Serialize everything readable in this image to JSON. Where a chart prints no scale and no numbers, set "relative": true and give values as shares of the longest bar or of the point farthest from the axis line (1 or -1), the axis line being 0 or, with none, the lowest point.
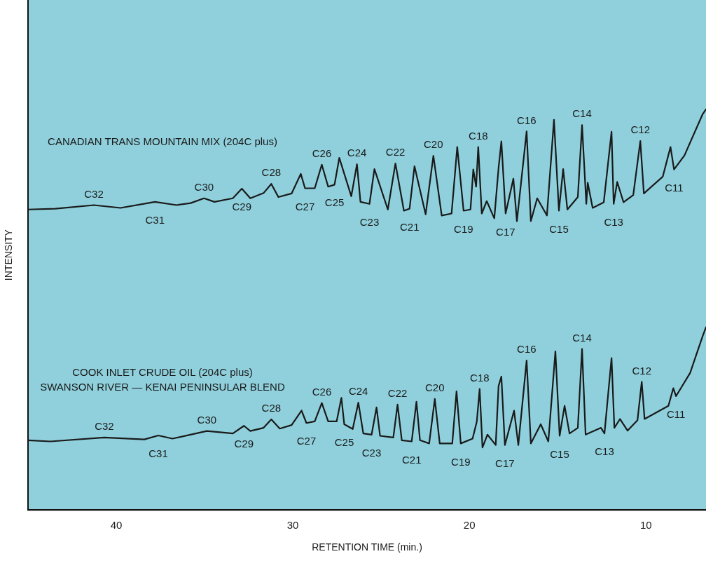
{
  "chart_data": {
    "type": "line",
    "xlabel": "RETENTION TIME (min.)",
    "ylabel": "INTENSITY",
    "relative": true,
    "marker": "none",
    "xlim": [
      45,
      6.6
    ],
    "xticks": [
      40,
      30,
      20,
      10
    ],
    "series": [
      {
        "color": "#1a1a1a",
        "x": [
          45,
          43.46,
          41.27,
          39.76,
          37.81,
          36.58,
          35.79,
          35.03,
          34.44,
          33.4,
          32.89,
          32.41,
          31.66,
          31.22,
          30.82,
          30.07,
          29.55,
          29.31,
          28.76,
          28.36,
          28,
          27.64,
          27.37,
          26.69,
          26.37,
          26.17,
          25.66,
          25.38,
          24.62,
          24.19,
          23.71,
          23.39,
          23.11,
          22.48,
          22.04,
          21.57,
          21.01,
          20.69,
          20.33,
          19.94,
          19.78,
          19.62,
          19.5,
          19.3,
          19.02,
          18.59,
          18.35,
          18.19,
          17.95,
          17.51,
          17.31,
          16.76,
          16.52,
          16.16,
          15.61,
          15.21,
          14.93,
          14.69,
          14.45,
          13.86,
          13.62,
          13.38,
          13.3,
          13.02,
          12.39,
          11.95,
          11.83,
          11.63,
          11.27,
          10.72,
          10.32,
          10.12,
          9.05,
          8.61,
          8.41,
          7.82,
          6.79,
          6.6
        ],
        "values": [
          0.75,
          0.752,
          0.761,
          0.754,
          0.769,
          0.761,
          0.766,
          0.778,
          0.769,
          0.778,
          0.802,
          0.778,
          0.791,
          0.814,
          0.781,
          0.79,
          0.839,
          0.803,
          0.803,
          0.862,
          0.807,
          0.812,
          0.879,
          0.783,
          0.863,
          0.769,
          0.764,
          0.851,
          0.75,
          0.865,
          0.747,
          0.752,
          0.858,
          0.738,
          0.884,
          0.735,
          0.74,
          0.906,
          0.747,
          0.75,
          0.85,
          0.807,
          0.906,
          0.74,
          0.771,
          0.728,
          0.853,
          0.92,
          0.74,
          0.827,
          0.721,
          0.945,
          0.721,
          0.778,
          0.735,
          0.974,
          0.747,
          0.851,
          0.75,
          0.781,
          0.961,
          0.764,
          0.817,
          0.754,
          0.768,
          0.944,
          0.764,
          0.819,
          0.768,
          0.786,
          0.921,
          0.79,
          0.832,
          0.906,
          0.85,
          0.885,
          0.988,
          1
        ]
      },
      {
        "color": "#1a1a1a",
        "x": [
          45,
          43.73,
          40.68,
          38.41,
          37.62,
          36.82,
          34.87,
          33.4,
          32.77,
          32.41,
          31.66,
          31.22,
          30.74,
          30.07,
          29.51,
          29.23,
          28.76,
          28.36,
          28,
          27.52,
          27.25,
          27.09,
          26.61,
          26.29,
          26.01,
          25.54,
          25.26,
          25.06,
          24.31,
          24.07,
          23.83,
          23.27,
          23,
          22.8,
          22.28,
          21.96,
          21.68,
          20.97,
          20.73,
          20.49,
          19.82,
          19.58,
          19.42,
          19.26,
          18.98,
          18.51,
          18.35,
          18.19,
          17.99,
          17.47,
          17.23,
          16.76,
          16.52,
          15.96,
          15.53,
          15.13,
          14.89,
          14.61,
          14.33,
          13.86,
          13.62,
          13.42,
          12.55,
          12.35,
          11.95,
          11.79,
          11.47,
          11.04,
          10.48,
          10.24,
          10.08,
          8.73,
          8.45,
          8.3,
          7.5,
          6.79,
          6.6
        ],
        "values": [
          0.174,
          0.171,
          0.181,
          0.176,
          0.186,
          0.178,
          0.197,
          0.191,
          0.21,
          0.197,
          0.205,
          0.226,
          0.203,
          0.212,
          0.248,
          0.217,
          0.221,
          0.267,
          0.221,
          0.221,
          0.28,
          0.214,
          0.202,
          0.268,
          0.191,
          0.188,
          0.256,
          0.185,
          0.181,
          0.263,
          0.174,
          0.171,
          0.27,
          0.174,
          0.166,
          0.277,
          0.166,
          0.166,
          0.296,
          0.166,
          0.178,
          0.221,
          0.302,
          0.156,
          0.188,
          0.162,
          0.309,
          0.333,
          0.162,
          0.248,
          0.162,
          0.373,
          0.166,
          0.214,
          0.171,
          0.396,
          0.185,
          0.26,
          0.191,
          0.205,
          0.402,
          0.188,
          0.205,
          0.191,
          0.379,
          0.205,
          0.227,
          0.198,
          0.224,
          0.32,
          0.227,
          0.26,
          0.304,
          0.284,
          0.342,
          0.434,
          0.456
        ]
      }
    ],
    "annotations": [
      "CANADIAN TRANS MOUNTAIN MIX (204C plus)",
      "COOK INLET CRUDE OIL (204C plus)",
      "SWANSON RIVER — KENAI PENINSULAR BLEND",
      {
        "text": "C32",
        "x": 41.27,
        "y": 0.761
      },
      {
        "text": "C31",
        "x": 37.81,
        "y": 0.769
      },
      {
        "text": "C30",
        "x": 35.03,
        "y": 0.778
      },
      {
        "text": "C29",
        "x": 32.89,
        "y": 0.802
      },
      {
        "text": "C28",
        "x": 31.22,
        "y": 0.814
      },
      {
        "text": "C27",
        "x": 29.31,
        "y": 0.803
      },
      {
        "text": "C26",
        "x": 28.36,
        "y": 0.862
      },
      {
        "text": "C25",
        "x": 27.64,
        "y": 0.812
      },
      {
        "text": "C24",
        "x": 26.37,
        "y": 0.863
      },
      {
        "text": "C23",
        "x": 25.66,
        "y": 0.764
      },
      {
        "text": "C22",
        "x": 24.19,
        "y": 0.865
      },
      {
        "text": "C21",
        "x": 23.39,
        "y": 0.752
      },
      {
        "text": "C20",
        "x": 22.04,
        "y": 0.884
      },
      {
        "text": "C19",
        "x": 20.33,
        "y": 0.747
      },
      {
        "text": "C18",
        "x": 19.5,
        "y": 0.906
      },
      {
        "text": "C17",
        "x": 17.95,
        "y": 0.74
      },
      {
        "text": "C16",
        "x": 16.76,
        "y": 0.945
      },
      {
        "text": "C15",
        "x": 14.93,
        "y": 0.747
      },
      {
        "text": "C14",
        "x": 13.62,
        "y": 0.961
      },
      {
        "text": "C13",
        "x": 11.83,
        "y": 0.764
      },
      {
        "text": "C12",
        "x": 10.32,
        "y": 0.921
      },
      {
        "text": "C11",
        "x": 8.41,
        "y": 0.85
      },
      {
        "text": "C32",
        "x": 40.68,
        "y": 0.181
      },
      {
        "text": "C31",
        "x": 37.62,
        "y": 0.186
      },
      {
        "text": "C30",
        "x": 34.87,
        "y": 0.197
      },
      {
        "text": "C29",
        "x": 32.77,
        "y": 0.21
      },
      {
        "text": "C28",
        "x": 31.22,
        "y": 0.226
      },
      {
        "text": "C27",
        "x": 29.23,
        "y": 0.217
      },
      {
        "text": "C26",
        "x": 28.36,
        "y": 0.267
      },
      {
        "text": "C25",
        "x": 27.09,
        "y": 0.214
      },
      {
        "text": "C24",
        "x": 26.29,
        "y": 0.268
      },
      {
        "text": "C23",
        "x": 25.54,
        "y": 0.188
      },
      {
        "text": "C22",
        "x": 24.07,
        "y": 0.263
      },
      {
        "text": "C21",
        "x": 23.27,
        "y": 0.171
      },
      {
        "text": "C20",
        "x": 21.96,
        "y": 0.277
      },
      {
        "text": "C19",
        "x": 20.49,
        "y": 0.166
      },
      {
        "text": "C18",
        "x": 19.42,
        "y": 0.302
      },
      {
        "text": "C17",
        "x": 17.99,
        "y": 0.162
      },
      {
        "text": "C16",
        "x": 16.76,
        "y": 0.373
      },
      {
        "text": "C15",
        "x": 14.89,
        "y": 0.185
      },
      {
        "text": "C14",
        "x": 13.62,
        "y": 0.402
      },
      {
        "text": "C13",
        "x": 12.35,
        "y": 0.191
      },
      {
        "text": "C12",
        "x": 10.24,
        "y": 0.32
      },
      {
        "text": "C11",
        "x": 8.3,
        "y": 0.284
      }
    ]
  }
}
